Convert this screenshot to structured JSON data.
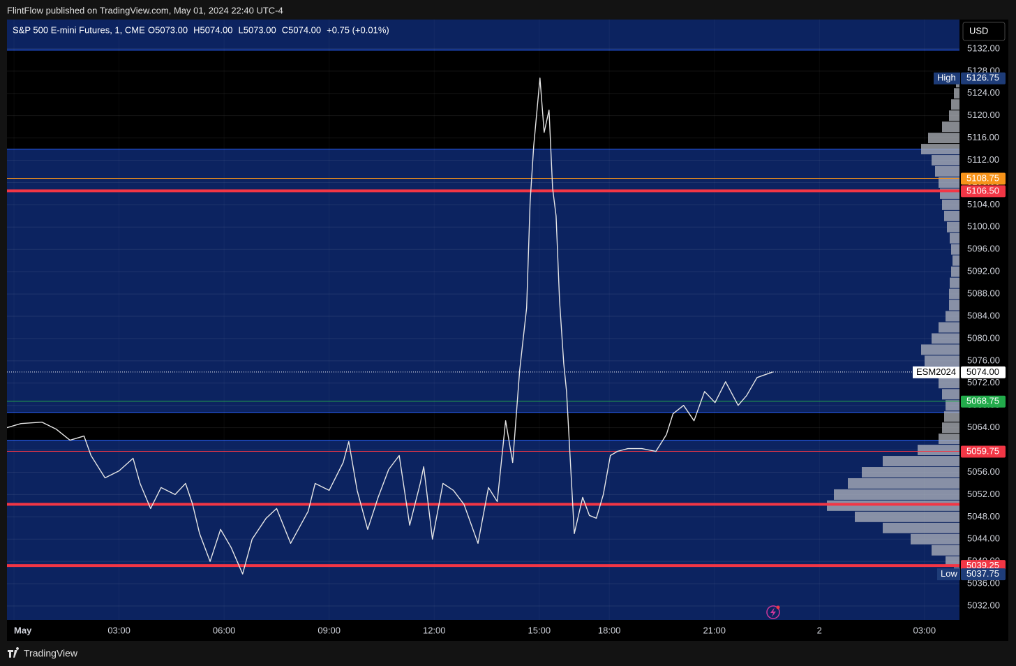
{
  "header": "FlintFlow published on TradingView.com, May 01, 2024 22:40 UTC-4",
  "footer": "TradingView",
  "chart_data": {
    "type": "line",
    "title": "S&P 500 E-mini Futures, 1, CME",
    "ohlc": [
      "O5073.00",
      "H5074.00",
      "L5073.00",
      "C5074.00",
      "+0.75 (+0.01%)"
    ],
    "currency": "USD",
    "x": [
      -0.2,
      0.2,
      0.8,
      1.2,
      1.6,
      2,
      2.2,
      2.6,
      3,
      3.4,
      3.6,
      3.9,
      4.2,
      4.6,
      4.9,
      5.1,
      5.3,
      5.6,
      5.9,
      6.2,
      6.53,
      6.8,
      7.2,
      7.5,
      7.9,
      8.4,
      8.6,
      9,
      9.4,
      9.56,
      9.8,
      10.1,
      10.4,
      10.7,
      11,
      11.3,
      11.6,
      11.7,
      11.95,
      12.25,
      12.55,
      12.85,
      13.25,
      13.55,
      13.8,
      14.04,
      14.24,
      14.44,
      14.64,
      14.74,
      14.84,
      15.02,
      15.14,
      15.28,
      15.38,
      15.48,
      15.58,
      15.7,
      15.78,
      15.9,
      16,
      16.24,
      16.43,
      16.63,
      16.83,
      17.03,
      17.23,
      17.53,
      17.93,
      18.33,
      18.63,
      18.82,
      19.12,
      19.42,
      19.72,
      20.02,
      20.32,
      20.68,
      20.92,
      21.22,
      21.67
    ],
    "series": [
      {
        "name": "ESM2024",
        "color": "#e6e6e6",
        "values": [
          5064,
          5064.75,
          5065,
          5063.75,
          5061.75,
          5062.5,
          5059,
          5055,
          5056.25,
          5058.5,
          5054,
          5049.5,
          5053.25,
          5052,
          5054,
          5050.25,
          5045,
          5040,
          5045.75,
          5042.5,
          5037.75,
          5044,
          5047.75,
          5049.5,
          5043.25,
          5049,
          5054,
          5052.75,
          5057.75,
          5061.5,
          5052.75,
          5045.75,
          5051.5,
          5056.5,
          5059,
          5046.5,
          5054,
          5057,
          5044,
          5054,
          5052.75,
          5050.25,
          5043.25,
          5053.25,
          5050.75,
          5065.25,
          5057.75,
          5074.25,
          5085.5,
          5104.5,
          5114.5,
          5126.75,
          5117,
          5121,
          5107,
          5102,
          5086.75,
          5075.5,
          5070.5,
          5056.5,
          5045,
          5051.5,
          5048.25,
          5047.75,
          5052,
          5059,
          5059.75,
          5060.25,
          5060.25,
          5059.75,
          5062.75,
          5066.5,
          5068,
          5065.25,
          5070.5,
          5068.5,
          5072.25,
          5068,
          5069.75,
          5073,
          5074
        ]
      }
    ],
    "xlim": [
      -0.2,
      27
    ],
    "xticks": [
      {
        "value": 0,
        "label": "May"
      },
      {
        "value": 3,
        "label": "03:00"
      },
      {
        "value": 6,
        "label": "06:00"
      },
      {
        "value": 9,
        "label": "09:00"
      },
      {
        "value": 12,
        "label": "12:00"
      },
      {
        "value": 15,
        "label": "15:00"
      },
      {
        "value": 17,
        "label": "18:00"
      },
      {
        "value": 20,
        "label": "21:00"
      },
      {
        "value": 23,
        "label": "2"
      },
      {
        "value": 26,
        "label": "03:00"
      }
    ],
    "ylim": [
      5029.5,
      5137.25
    ],
    "yticks": [
      {
        "value": 5032,
        "label": "5032.00"
      },
      {
        "value": 5036,
        "label": "5036.00"
      },
      {
        "value": 5040,
        "label": "5040.00"
      },
      {
        "value": 5044,
        "label": "5044.00"
      },
      {
        "value": 5048,
        "label": "5048.00"
      },
      {
        "value": 5052,
        "label": "5052.00"
      },
      {
        "value": 5056,
        "label": "5056.00"
      },
      {
        "value": 5060,
        "label": "5060.00"
      },
      {
        "value": 5064,
        "label": "5064.00"
      },
      {
        "value": 5068,
        "label": "5068.00"
      },
      {
        "value": 5072,
        "label": "5072.00"
      },
      {
        "value": 5076,
        "label": "5076.00"
      },
      {
        "value": 5080,
        "label": "5080.00"
      },
      {
        "value": 5084,
        "label": "5084.00"
      },
      {
        "value": 5088,
        "label": "5088.00"
      },
      {
        "value": 5092,
        "label": "5092.00"
      },
      {
        "value": 5096,
        "label": "5096.00"
      },
      {
        "value": 5100,
        "label": "5100.00"
      },
      {
        "value": 5104,
        "label": "5104.00"
      },
      {
        "value": 5108,
        "label": "5108.00"
      },
      {
        "value": 5112,
        "label": "5112.00"
      },
      {
        "value": 5116,
        "label": "5116.00"
      },
      {
        "value": 5120,
        "label": "5120.00"
      },
      {
        "value": 5124,
        "label": "5124.00"
      },
      {
        "value": 5128,
        "label": "5128.00"
      },
      {
        "value": 5132,
        "label": "5132.00"
      }
    ],
    "grid": true,
    "background": "#0c2360",
    "zones": [
      {
        "from": 5114,
        "to": 5131.75,
        "color": "#000000",
        "border": "#2962ff"
      },
      {
        "from": 5061.75,
        "to": 5066.75,
        "color": "#000000",
        "border": "#2962ff"
      }
    ],
    "levels": [
      {
        "value": 5108.75,
        "label": "5108.75",
        "color": "#f7931a",
        "style": "thin"
      },
      {
        "value": 5106.5,
        "label": "5106.50",
        "color": "#f23645",
        "style": "thick"
      },
      {
        "value": 5068.75,
        "label": "5068.75",
        "color": "#22ab4b",
        "style": "thin"
      },
      {
        "value": 5059.75,
        "label": "5059.75",
        "color": "#f23645",
        "style": "thin"
      },
      {
        "value": 5050.25,
        "color": "#f23645",
        "style": "thick"
      },
      {
        "value": 5039.25,
        "label": "5039.25",
        "color": "#f23645",
        "style": "thick"
      }
    ],
    "last_price": {
      "value": 5074,
      "label": "5074.00",
      "symbol": "ESM2024"
    },
    "high": {
      "name": "High",
      "value": 5126.75,
      "label": "5126.75"
    },
    "low": {
      "name": "Low",
      "value": 5037.75,
      "label": "5037.75"
    },
    "volume_profile": {
      "color": "#b2b5be",
      "prices": [
        5038,
        5040,
        5042,
        5044,
        5046,
        5048,
        5050,
        5052,
        5054,
        5056,
        5058,
        5060,
        5062,
        5064,
        5066,
        5068,
        5070,
        5072,
        5074,
        5076,
        5078,
        5080,
        5082,
        5084,
        5086,
        5088,
        5090,
        5092,
        5094,
        5096,
        5098,
        5100,
        5102,
        5104,
        5106,
        5108,
        5110,
        5112,
        5114,
        5116,
        5118,
        5120,
        5122,
        5124,
        5126
      ],
      "values": [
        8,
        20,
        40,
        70,
        110,
        150,
        190,
        180,
        160,
        140,
        110,
        60,
        30,
        25,
        22,
        20,
        25,
        30,
        35,
        50,
        55,
        40,
        30,
        20,
        15,
        15,
        14,
        12,
        10,
        12,
        14,
        18,
        22,
        25,
        28,
        30,
        35,
        40,
        55,
        45,
        25,
        15,
        12,
        8,
        5
      ]
    }
  }
}
